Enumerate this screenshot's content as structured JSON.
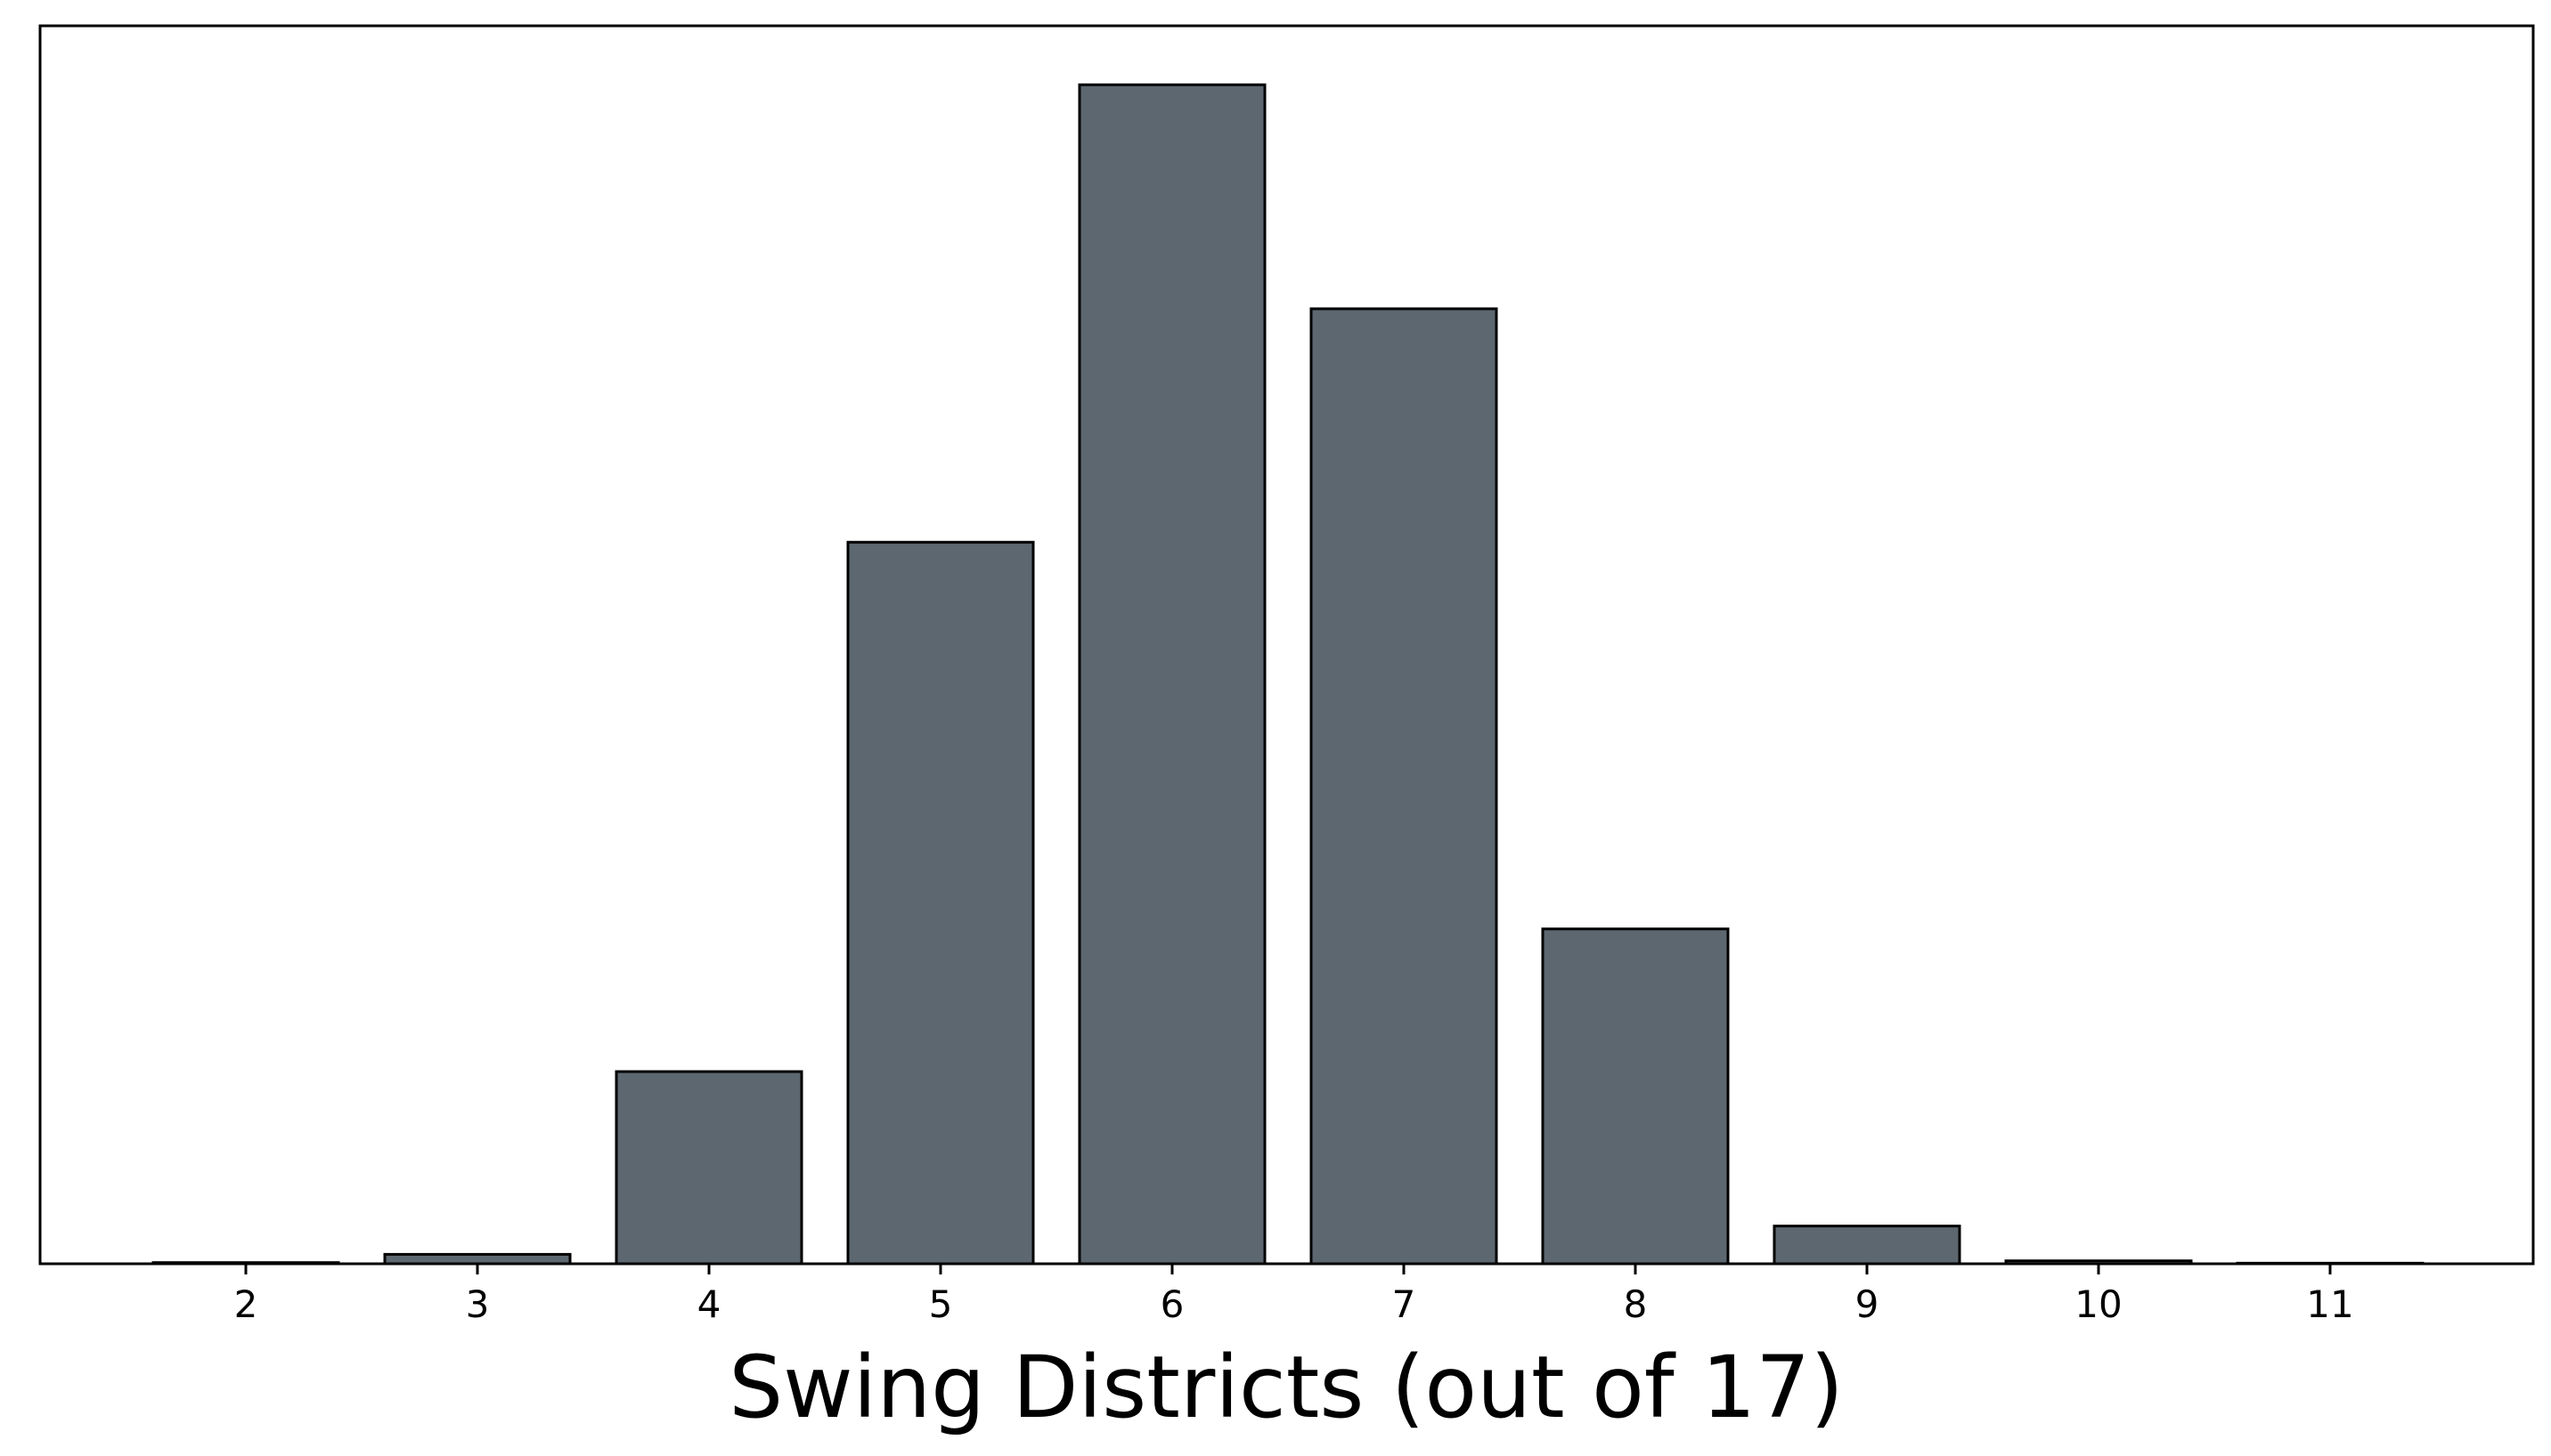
{
  "chart_data": {
    "type": "bar",
    "categories": [
      "2",
      "3",
      "4",
      "5",
      "6",
      "7",
      "8",
      "9",
      "10",
      "11"
    ],
    "values": [
      0.1,
      0.8,
      16.3,
      61.2,
      100,
      81,
      28.4,
      3.2,
      0.25,
      0.05
    ],
    "xlabel": "Swing Districts (out of 17)",
    "ylabel": "",
    "title": "",
    "ylim": [
      0,
      105
    ],
    "grid": false,
    "bar_color": "#5d6770",
    "edge_color": "#000000",
    "y_ticks_shown": false
  }
}
